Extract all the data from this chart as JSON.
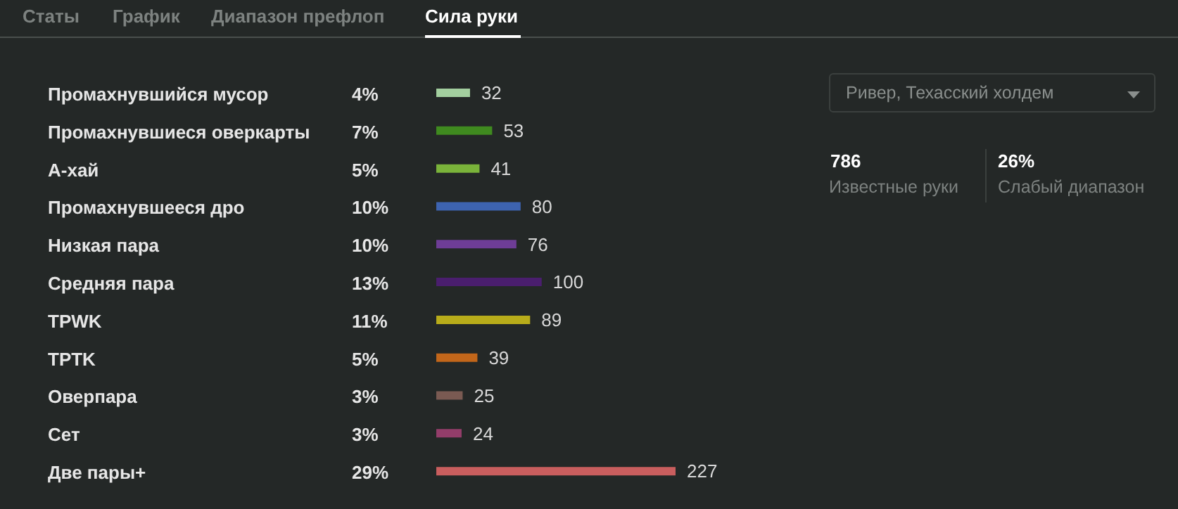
{
  "chart_data": {
    "type": "bar",
    "orientation": "horizontal",
    "categories": [
      "Промахнувшийся мусор",
      "Промахнувшиеся оверкарты",
      "A-хай",
      "Промахнувшееся дро",
      "Низкая пара",
      "Средняя пара",
      "TPWK",
      "TPTK",
      "Оверпара",
      "Сет",
      "Две пары+"
    ],
    "values": [
      32,
      53,
      41,
      80,
      76,
      100,
      89,
      39,
      25,
      24,
      227
    ],
    "colors": [
      "#a3cf9f",
      "#3f8a1f",
      "#7ab33a",
      "#3d63b0",
      "#6e3d96",
      "#4a1e6e",
      "#b8ac1a",
      "#c2661a",
      "#7a5a52",
      "#933d6a",
      "#c95e5e"
    ],
    "data_labels": true,
    "annotations": [
      "Статы",
      "График",
      "Диапазон префлоп",
      "Сила руки",
      "Ривер, Техасский холдем",
      "786",
      "Известные руки",
      "26%",
      "Слабый диапазон",
      "4%",
      "7%",
      "5%",
      "10%",
      "10%",
      "13%",
      "11%",
      "5%",
      "3%",
      "3%",
      "29%"
    ]
  }
}
